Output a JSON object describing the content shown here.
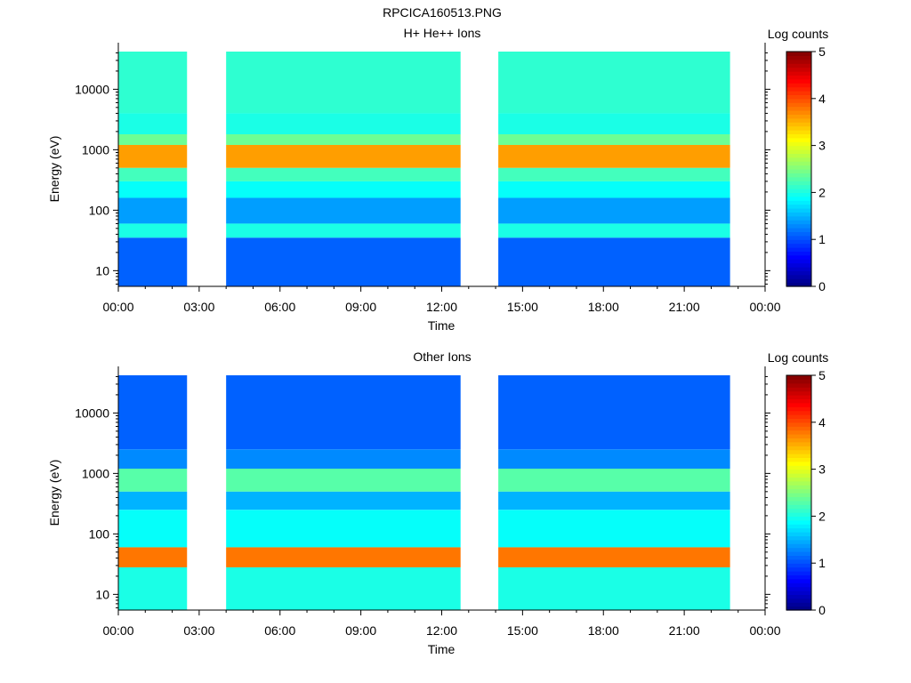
{
  "page_title": "RPCICA160513.PNG",
  "colors": {
    "colormap": [
      "#000080",
      "#0000ff",
      "#0080ff",
      "#00ffff",
      "#80ff80",
      "#ffff00",
      "#ff8000",
      "#ff0000",
      "#800000"
    ],
    "gap": "#ffffff",
    "axis": "#000000"
  },
  "chart_data": [
    {
      "type": "heatmap",
      "title": "H+ He++ Ions",
      "xlabel": "Time",
      "ylabel": "Energy (eV)",
      "colorbar_label": "Log counts",
      "colorbar_ticks": [
        "0",
        "1",
        "2",
        "3",
        "4",
        "5"
      ],
      "colorbar_range": [
        0,
        5
      ],
      "x_tick_labels": [
        "00:00",
        "03:00",
        "06:00",
        "09:00",
        "12:00",
        "15:00",
        "18:00",
        "21:00",
        "00:00"
      ],
      "x_range_hours": [
        0,
        24
      ],
      "y_scale": "log",
      "y_tick_labels": [
        "10",
        "100",
        "1000",
        "10000"
      ],
      "y_range_ev": [
        5.5,
        42000
      ],
      "data_gaps_hours": [
        [
          2.55,
          4.0
        ],
        [
          12.7,
          14.1
        ],
        [
          22.7,
          24.0
        ]
      ],
      "bands": [
        {
          "from_ev": 4000,
          "to_ev": 42000,
          "log_counts": 2.1
        },
        {
          "from_ev": 1800,
          "to_ev": 4000,
          "log_counts": 2.0
        },
        {
          "from_ev": 1200,
          "to_ev": 1800,
          "log_counts": 2.4
        },
        {
          "from_ev": 500,
          "to_ev": 1200,
          "log_counts": 3.6
        },
        {
          "from_ev": 300,
          "to_ev": 500,
          "log_counts": 2.2
        },
        {
          "from_ev": 160,
          "to_ev": 300,
          "log_counts": 1.9
        },
        {
          "from_ev": 60,
          "to_ev": 160,
          "log_counts": 1.4
        },
        {
          "from_ev": 35,
          "to_ev": 60,
          "log_counts": 2.0
        },
        {
          "from_ev": 5.5,
          "to_ev": 35,
          "log_counts": 1.1
        }
      ]
    },
    {
      "type": "heatmap",
      "title": "Other Ions",
      "xlabel": "Time",
      "ylabel": "Energy (eV)",
      "colorbar_label": "Log counts",
      "colorbar_ticks": [
        "0",
        "1",
        "2",
        "3",
        "4",
        "5"
      ],
      "colorbar_range": [
        0,
        5
      ],
      "x_tick_labels": [
        "00:00",
        "03:00",
        "06:00",
        "09:00",
        "12:00",
        "15:00",
        "18:00",
        "21:00",
        "00:00"
      ],
      "x_range_hours": [
        0,
        24
      ],
      "y_scale": "log",
      "y_tick_labels": [
        "10",
        "100",
        "1000",
        "10000"
      ],
      "y_range_ev": [
        5.5,
        42000
      ],
      "data_gaps_hours": [
        [
          2.55,
          4.0
        ],
        [
          12.7,
          14.1
        ],
        [
          22.7,
          24.0
        ]
      ],
      "bands": [
        {
          "from_ev": 2500,
          "to_ev": 42000,
          "log_counts": 1.1
        },
        {
          "from_ev": 500,
          "to_ev": 1200,
          "log_counts": 2.3
        },
        {
          "from_ev": 1200,
          "to_ev": 2500,
          "log_counts": 1.3
        },
        {
          "from_ev": 250,
          "to_ev": 500,
          "log_counts": 1.5
        },
        {
          "from_ev": 60,
          "to_ev": 250,
          "log_counts": 1.9
        },
        {
          "from_ev": 28,
          "to_ev": 60,
          "log_counts": 3.8
        },
        {
          "from_ev": 5.5,
          "to_ev": 28,
          "log_counts": 2.0
        }
      ]
    }
  ]
}
